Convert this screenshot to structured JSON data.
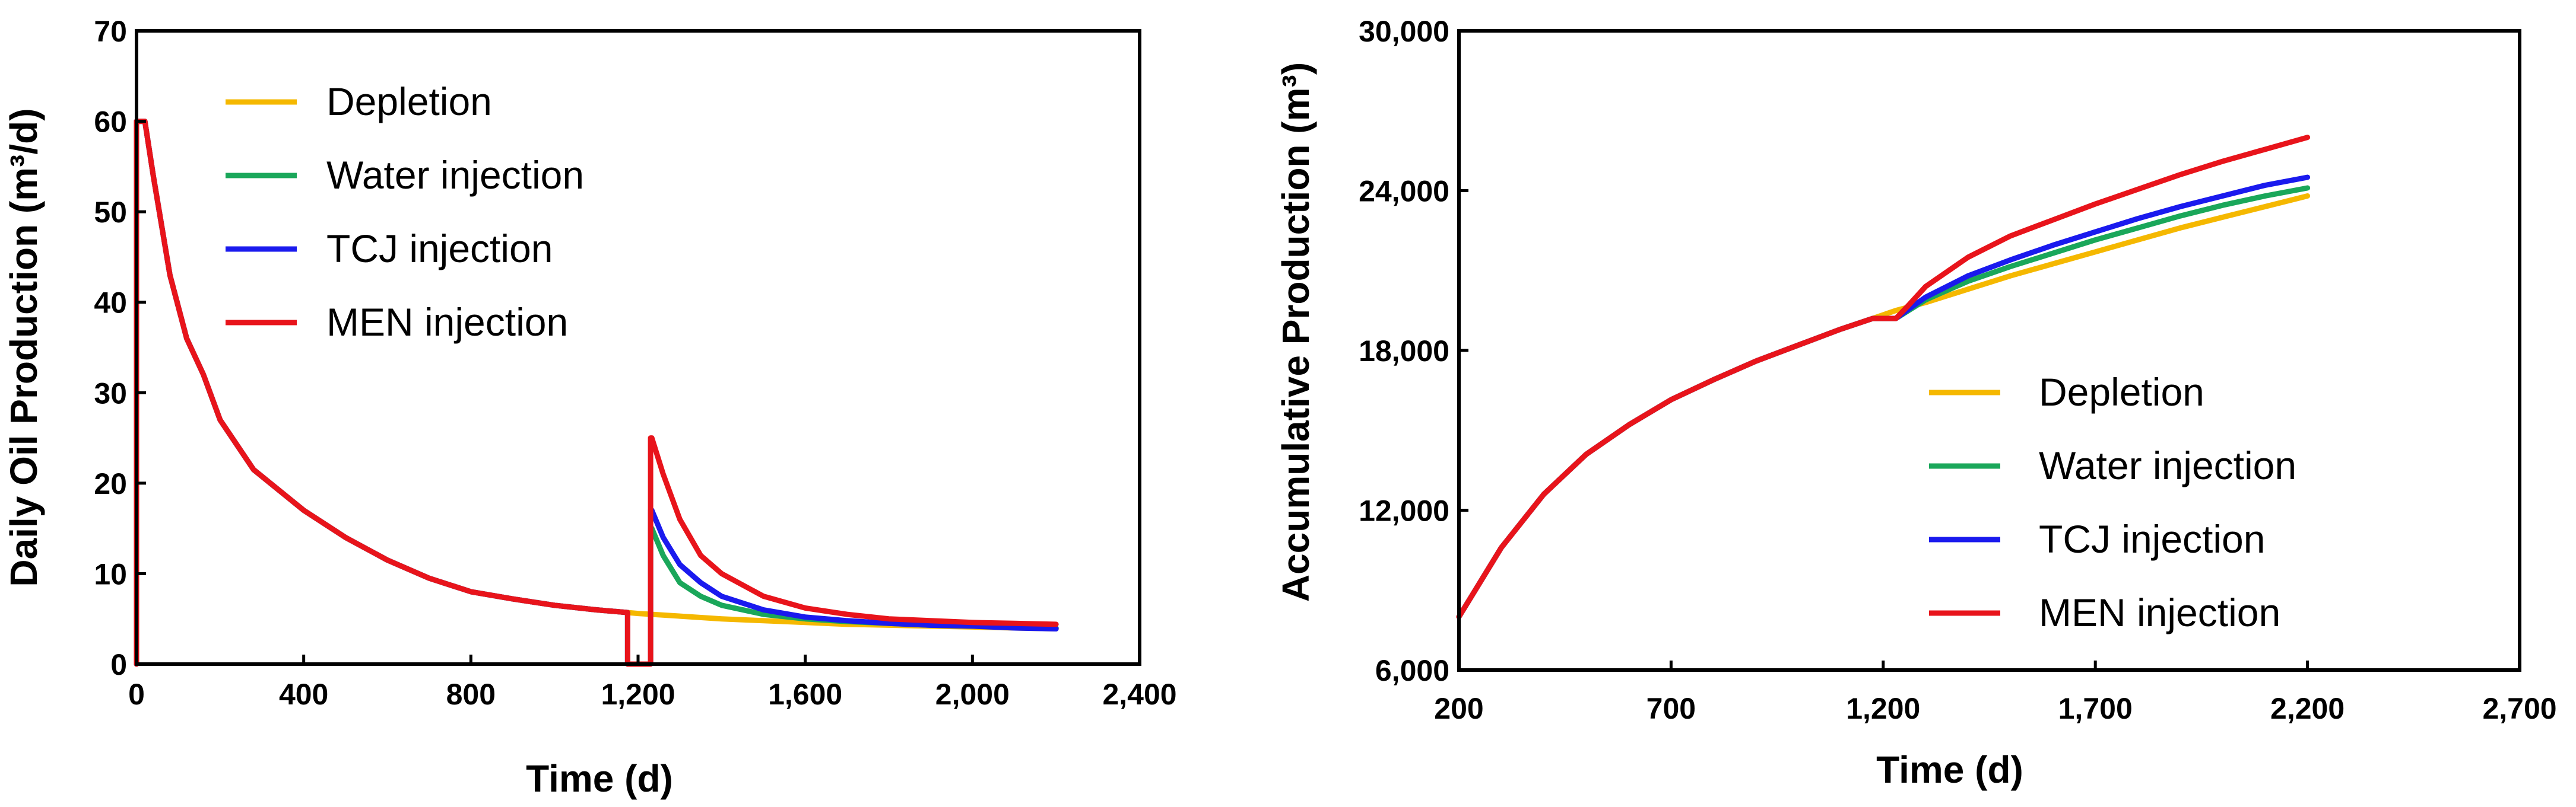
{
  "chart_data": [
    {
      "type": "line",
      "xlabel": "Time (d)",
      "ylabel": "Daily Oil Production (m³/d)",
      "xlim": [
        0,
        2400
      ],
      "ylim": [
        0,
        70
      ],
      "xticks": [
        0,
        400,
        800,
        1200,
        1600,
        2000,
        2400
      ],
      "xtick_labels": [
        "0",
        "400",
        "800",
        "1,200",
        "1,600",
        "2,000",
        "2,400"
      ],
      "yticks": [
        0,
        10,
        20,
        30,
        40,
        50,
        60,
        70
      ],
      "ytick_labels": [
        "0",
        "10",
        "20",
        "30",
        "40",
        "50",
        "60",
        "70"
      ],
      "legend_position": "top-left",
      "series": [
        {
          "name": "Depletion",
          "color": "#f5b800",
          "x": [
            0,
            0,
            20,
            40,
            80,
            120,
            160,
            200,
            280,
            400,
            500,
            600,
            700,
            800,
            900,
            1000,
            1100,
            1200,
            1300,
            1400,
            1500,
            1600,
            1700,
            1800,
            1900,
            2000,
            2100,
            2200
          ],
          "y": [
            0,
            60,
            60,
            54,
            43,
            36,
            32,
            27,
            21.5,
            17,
            14,
            11.5,
            9.5,
            8,
            7.2,
            6.5,
            6,
            5.6,
            5.3,
            5.0,
            4.8,
            4.6,
            4.4,
            4.3,
            4.2,
            4.1,
            4.0,
            3.9
          ]
        },
        {
          "name": "Water injection",
          "color": "#1aa75a",
          "x": [
            0,
            0,
            20,
            40,
            80,
            120,
            160,
            200,
            280,
            400,
            500,
            600,
            700,
            800,
            900,
            1000,
            1100,
            1175,
            1175,
            1180,
            1230,
            1230,
            1233,
            1260,
            1300,
            1350,
            1400,
            1500,
            1600,
            1700,
            1800,
            1900,
            2000,
            2100,
            2200
          ],
          "y": [
            0,
            60,
            60,
            54,
            43,
            36,
            32,
            27,
            21.5,
            17,
            14,
            11.5,
            9.5,
            8,
            7.2,
            6.5,
            6,
            5.7,
            0,
            0,
            0,
            15,
            15,
            12,
            9,
            7.5,
            6.5,
            5.5,
            5,
            4.7,
            4.5,
            4.3,
            4.2,
            4.1,
            4.0
          ]
        },
        {
          "name": "TCJ injection",
          "color": "#1a1aee",
          "x": [
            0,
            0,
            20,
            40,
            80,
            120,
            160,
            200,
            280,
            400,
            500,
            600,
            700,
            800,
            900,
            1000,
            1100,
            1175,
            1175,
            1180,
            1230,
            1230,
            1233,
            1260,
            1300,
            1350,
            1400,
            1500,
            1600,
            1700,
            1800,
            1900,
            2000,
            2100,
            2200
          ],
          "y": [
            0,
            60,
            60,
            54,
            43,
            36,
            32,
            27,
            21.5,
            17,
            14,
            11.5,
            9.5,
            8,
            7.2,
            6.5,
            6,
            5.7,
            0,
            0,
            0,
            17,
            17,
            14,
            11,
            9,
            7.5,
            6,
            5.2,
            4.8,
            4.5,
            4.3,
            4.2,
            4.0,
            3.9
          ]
        },
        {
          "name": "MEN injection",
          "color": "#e8141b",
          "x": [
            0,
            0,
            20,
            40,
            80,
            120,
            160,
            200,
            280,
            400,
            500,
            600,
            700,
            800,
            900,
            1000,
            1100,
            1175,
            1175,
            1180,
            1230,
            1230,
            1233,
            1260,
            1300,
            1350,
            1400,
            1500,
            1600,
            1700,
            1800,
            1900,
            2000,
            2100,
            2200
          ],
          "y": [
            0,
            60,
            60,
            54,
            43,
            36,
            32,
            27,
            21.5,
            17,
            14,
            11.5,
            9.5,
            8,
            7.2,
            6.5,
            6,
            5.7,
            0,
            0,
            0,
            25,
            25,
            21,
            16,
            12,
            10,
            7.5,
            6.2,
            5.5,
            5,
            4.8,
            4.6,
            4.5,
            4.4
          ]
        }
      ]
    },
    {
      "type": "line",
      "xlabel": "Time (d)",
      "ylabel": "Accumulative Production (m³)",
      "xlim": [
        200,
        2700
      ],
      "ylim": [
        6000,
        30000
      ],
      "xticks": [
        200,
        700,
        1200,
        1700,
        2200,
        2700
      ],
      "xtick_labels": [
        "200",
        "700",
        "1,200",
        "1,700",
        "2,200",
        "2,700"
      ],
      "yticks": [
        6000,
        12000,
        18000,
        24000,
        30000
      ],
      "ytick_labels": [
        "6,000",
        "12,000",
        "18,000",
        "24,000",
        "30,000"
      ],
      "legend_position": "center-right",
      "series": [
        {
          "name": "Depletion",
          "color": "#f5b800",
          "x": [
            200,
            300,
            400,
            500,
            600,
            700,
            800,
            900,
            1000,
            1100,
            1175,
            1230,
            1300,
            1400,
            1500,
            1600,
            1700,
            1800,
            1900,
            2000,
            2100,
            2200
          ],
          "y": [
            8000,
            10600,
            12600,
            14100,
            15200,
            16150,
            16900,
            17600,
            18200,
            18800,
            19200,
            19500,
            19800,
            20300,
            20800,
            21250,
            21700,
            22150,
            22600,
            23000,
            23400,
            23800
          ]
        },
        {
          "name": "Water injection",
          "color": "#1aa75a",
          "x": [
            200,
            300,
            400,
            500,
            600,
            700,
            800,
            900,
            1000,
            1100,
            1175,
            1230,
            1260,
            1300,
            1400,
            1500,
            1600,
            1700,
            1800,
            1900,
            2000,
            2100,
            2200
          ],
          "y": [
            8000,
            10600,
            12600,
            14100,
            15200,
            16150,
            16900,
            17600,
            18200,
            18800,
            19200,
            19200,
            19500,
            19900,
            20600,
            21150,
            21650,
            22150,
            22600,
            23050,
            23450,
            23800,
            24100
          ]
        },
        {
          "name": "TCJ injection",
          "color": "#1a1aee",
          "x": [
            200,
            300,
            400,
            500,
            600,
            700,
            800,
            900,
            1000,
            1100,
            1175,
            1230,
            1260,
            1300,
            1400,
            1500,
            1600,
            1700,
            1800,
            1900,
            2000,
            2100,
            2200
          ],
          "y": [
            8000,
            10600,
            12600,
            14100,
            15200,
            16150,
            16900,
            17600,
            18200,
            18800,
            19200,
            19200,
            19550,
            20000,
            20800,
            21400,
            21950,
            22450,
            22950,
            23400,
            23800,
            24200,
            24500
          ]
        },
        {
          "name": "MEN injection",
          "color": "#e8141b",
          "x": [
            200,
            300,
            400,
            500,
            600,
            700,
            800,
            900,
            1000,
            1100,
            1175,
            1230,
            1260,
            1300,
            1400,
            1500,
            1600,
            1700,
            1800,
            1900,
            2000,
            2100,
            2200
          ],
          "y": [
            8000,
            10600,
            12600,
            14100,
            15200,
            16150,
            16900,
            17600,
            18200,
            18800,
            19200,
            19200,
            19700,
            20400,
            21500,
            22300,
            22900,
            23500,
            24050,
            24600,
            25100,
            25550,
            26000
          ]
        }
      ]
    }
  ]
}
